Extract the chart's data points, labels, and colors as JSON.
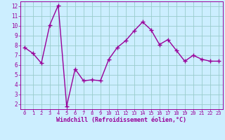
{
  "x": [
    0,
    1,
    2,
    3,
    4,
    5,
    6,
    7,
    8,
    9,
    10,
    11,
    12,
    13,
    14,
    15,
    16,
    17,
    18,
    19,
    20,
    21,
    22,
    23
  ],
  "y": [
    7.8,
    7.2,
    6.2,
    10.1,
    12.1,
    1.8,
    5.6,
    4.4,
    4.5,
    4.4,
    6.6,
    7.8,
    8.5,
    9.5,
    10.4,
    9.6,
    8.1,
    8.6,
    7.5,
    6.4,
    7.0,
    6.6,
    6.4,
    6.4
  ],
  "line_color": "#990099",
  "marker": "+",
  "marker_size": 4,
  "bg_color": "#cceeff",
  "grid_color": "#99cccc",
  "xlabel": "Windchill (Refroidissement éolien,°C)",
  "xlabel_color": "#990099",
  "tick_color": "#990099",
  "ylim": [
    1.5,
    12.5
  ],
  "yticks": [
    2,
    3,
    4,
    5,
    6,
    7,
    8,
    9,
    10,
    11,
    12
  ],
  "xticks": [
    0,
    1,
    2,
    3,
    4,
    5,
    6,
    7,
    8,
    9,
    10,
    11,
    12,
    13,
    14,
    15,
    16,
    17,
    18,
    19,
    20,
    21,
    22,
    23
  ],
  "line_width": 1.0
}
